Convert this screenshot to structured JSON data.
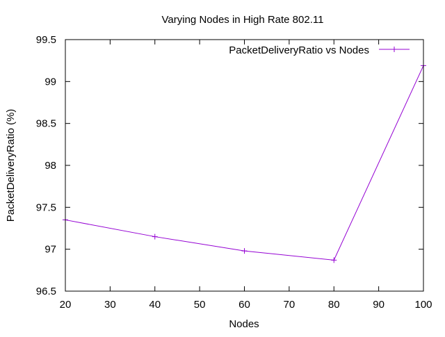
{
  "chart_data": {
    "type": "line",
    "title": "Varying Nodes in High Rate 802.11",
    "xlabel": "Nodes",
    "ylabel": "PacketDeliveryRatio (%)",
    "xlim": [
      20,
      100
    ],
    "ylim": [
      96.5,
      99.5
    ],
    "x_ticks": [
      20,
      30,
      40,
      50,
      60,
      70,
      80,
      90,
      100
    ],
    "y_ticks": [
      "96.5",
      "97",
      "97.5",
      "98",
      "98.5",
      "99",
      "99.5"
    ],
    "grid": false,
    "legend_position": "top-right",
    "series": [
      {
        "name": "PacketDeliveryRatio vs Nodes",
        "color": "#9400d3",
        "marker": "plus",
        "x": [
          20,
          40,
          60,
          80,
          100
        ],
        "y": [
          97.35,
          97.15,
          96.98,
          96.87,
          99.19
        ]
      }
    ]
  }
}
